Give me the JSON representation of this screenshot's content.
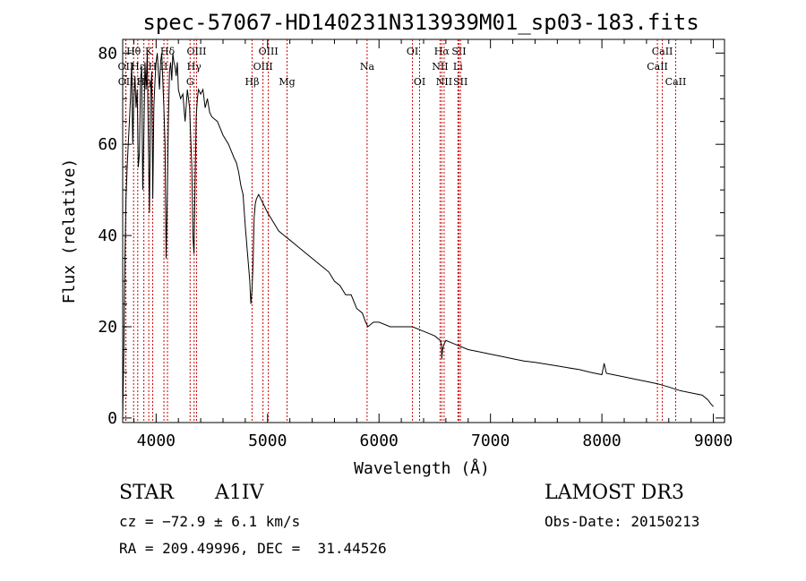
{
  "chart_data": {
    "type": "line",
    "title": "spec-57067-HD140231N313939M01_sp03-183.fits",
    "xlabel": "Wavelength (Å)",
    "ylabel": "Flux (relative)",
    "xlim": [
      3700,
      9100
    ],
    "ylim": [
      -1,
      83
    ],
    "xticks": [
      4000,
      5000,
      6000,
      7000,
      8000,
      9000
    ],
    "yticks": [
      0,
      20,
      40,
      60,
      80
    ],
    "grid": false,
    "series": [
      {
        "name": "flux",
        "x": [
          3700,
          3710,
          3720,
          3730,
          3740,
          3750,
          3760,
          3770,
          3780,
          3790,
          3800,
          3810,
          3820,
          3830,
          3840,
          3850,
          3860,
          3870,
          3880,
          3890,
          3900,
          3910,
          3920,
          3930,
          3940,
          3950,
          3960,
          3970,
          3980,
          3990,
          4000,
          4010,
          4020,
          4030,
          4040,
          4050,
          4060,
          4070,
          4080,
          4090,
          4100,
          4110,
          4120,
          4130,
          4140,
          4150,
          4160,
          4170,
          4180,
          4190,
          4200,
          4220,
          4240,
          4260,
          4280,
          4300,
          4320,
          4330,
          4340,
          4350,
          4360,
          4370,
          4380,
          4400,
          4420,
          4440,
          4460,
          4480,
          4500,
          4550,
          4600,
          4650,
          4700,
          4720,
          4740,
          4760,
          4780,
          4800,
          4820,
          4840,
          4850,
          4860,
          4870,
          4880,
          4890,
          4900,
          4920,
          4940,
          4960,
          4980,
          5000,
          5050,
          5100,
          5150,
          5200,
          5250,
          5300,
          5350,
          5400,
          5450,
          5500,
          5550,
          5600,
          5650,
          5700,
          5750,
          5800,
          5850,
          5880,
          5900,
          5950,
          6000,
          6100,
          6200,
          6300,
          6400,
          6500,
          6550,
          6560,
          6563,
          6570,
          6580,
          6600,
          6700,
          6800,
          6900,
          7000,
          7100,
          7200,
          7300,
          7400,
          7500,
          7600,
          7700,
          7800,
          7900,
          8000,
          8020,
          8040,
          8100,
          8200,
          8300,
          8400,
          8500,
          8600,
          8700,
          8800,
          8900,
          8950,
          8980,
          9000
        ],
        "values": [
          0,
          14,
          35,
          48,
          55,
          60,
          65,
          70,
          78,
          60,
          70,
          75,
          68,
          72,
          55,
          58,
          74,
          77,
          50,
          62,
          78,
          72,
          80,
          62,
          45,
          70,
          76,
          48,
          68,
          74,
          78,
          80,
          76,
          72,
          78,
          80,
          74,
          68,
          60,
          35,
          48,
          65,
          76,
          78,
          74,
          80,
          78,
          77,
          75,
          78,
          72,
          70,
          71,
          65,
          72,
          68,
          55,
          40,
          36,
          52,
          66,
          70,
          72,
          71,
          72,
          68,
          70,
          67,
          66,
          65,
          62,
          60,
          57,
          56,
          54,
          51,
          49,
          42,
          36,
          30,
          25,
          28,
          34,
          44,
          47,
          48,
          49,
          48,
          47,
          46,
          45,
          43,
          41,
          40,
          39,
          38,
          37,
          36,
          35,
          34,
          33,
          32,
          30,
          29,
          27,
          27,
          24,
          23,
          21,
          20,
          21,
          21,
          20,
          20,
          20,
          19,
          18,
          17,
          16,
          13,
          15,
          16,
          17,
          16,
          15,
          14.5,
          14,
          13.5,
          13,
          12.5,
          12.2,
          11.8,
          11.4,
          11,
          10.6,
          10,
          9.5,
          12,
          9.8,
          9.5,
          9,
          8.5,
          8,
          7.5,
          6.8,
          6,
          5.5,
          5,
          4,
          3,
          2.5
        ]
      }
    ],
    "lines": [
      {
        "name": "Hθ",
        "x": 3798,
        "row": 1
      },
      {
        "name": "OII",
        "x": 3727,
        "row": 2
      },
      {
        "name": "OII",
        "x": 3729,
        "row": 3
      },
      {
        "name": "Hε",
        "x": 3835,
        "row": 2
      },
      {
        "name": "Hη",
        "x": 3890,
        "row": 3
      },
      {
        "name": "K",
        "x": 3934,
        "row": 1
      },
      {
        "name": "H",
        "x": 3969,
        "row": 2
      },
      {
        "name": "Hδ",
        "x": 4102,
        "row": 1
      },
      {
        "name": "II",
        "x": 4070,
        "row": 2
      },
      {
        "name": "OIII",
        "x": 4363,
        "row": 1
      },
      {
        "name": "Hγ",
        "x": 4341,
        "row": 2
      },
      {
        "name": "G",
        "x": 4305,
        "row": 3
      },
      {
        "name": "OIII",
        "x": 5007,
        "row": 1
      },
      {
        "name": "OIII",
        "x": 4959,
        "row": 2
      },
      {
        "name": "Hβ",
        "x": 4861,
        "row": 3
      },
      {
        "name": "Mg",
        "x": 5175,
        "row": 3
      },
      {
        "name": "Na",
        "x": 5893,
        "row": 2
      },
      {
        "name": "OI",
        "x": 6300,
        "row": 1
      },
      {
        "name": "OI",
        "x": 6364,
        "row": 3
      },
      {
        "name": "Hα",
        "x": 6563,
        "row": 1
      },
      {
        "name": "SII",
        "x": 6717,
        "row": 1
      },
      {
        "name": "NII",
        "x": 6548,
        "row": 2
      },
      {
        "name": "Li",
        "x": 6708,
        "row": 2
      },
      {
        "name": "NII",
        "x": 6584,
        "row": 3
      },
      {
        "name": "SII",
        "x": 6731,
        "row": 3
      },
      {
        "name": "CaII",
        "x": 8542,
        "row": 1
      },
      {
        "name": "CaII",
        "x": 8498,
        "row": 2
      },
      {
        "name": "CaII",
        "x": 8662,
        "row": 3
      }
    ]
  },
  "info": {
    "object_class": "STAR",
    "subclass": "A1IV",
    "survey": "LAMOST DR3",
    "cz": "cz = −72.9 ± 6.1 km/s",
    "obs_date": "Obs-Date: 20150213",
    "coords": "RA = 209.49996, DEC =  31.44526"
  },
  "colors": {
    "spectrum": "#000000",
    "line_markers": "#cc0000",
    "axes": "#000000"
  }
}
